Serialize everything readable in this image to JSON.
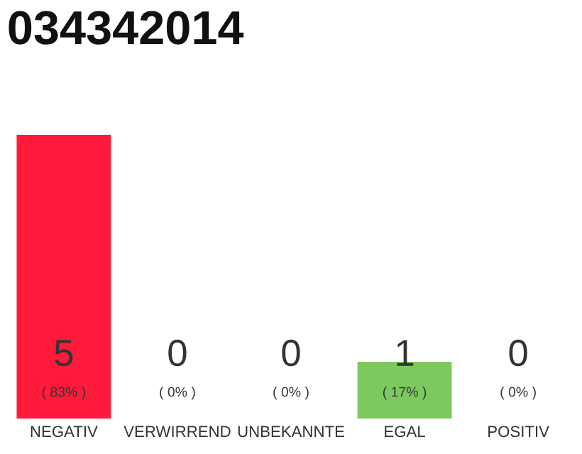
{
  "chart_data": {
    "type": "bar",
    "title": "034342014",
    "categories": [
      "NEGATIV",
      "VERWIRREND",
      "UNBEKANNTE",
      "EGAL",
      "POSITIV"
    ],
    "values": [
      5,
      0,
      0,
      1,
      0
    ],
    "colors": [
      "#ff1a3c",
      "#ff1a3c",
      "#ff1a3c",
      "#7dc95e",
      "#ff1a3c"
    ],
    "value_labels": [
      "5\n( 83% )",
      "0\n( 0% )",
      "0\n( 0% )",
      "1\n( 17% )",
      "0\n( 0% )"
    ],
    "ylim": [
      0,
      5
    ],
    "tick_labels": "x",
    "grid": false,
    "legend": false
  }
}
